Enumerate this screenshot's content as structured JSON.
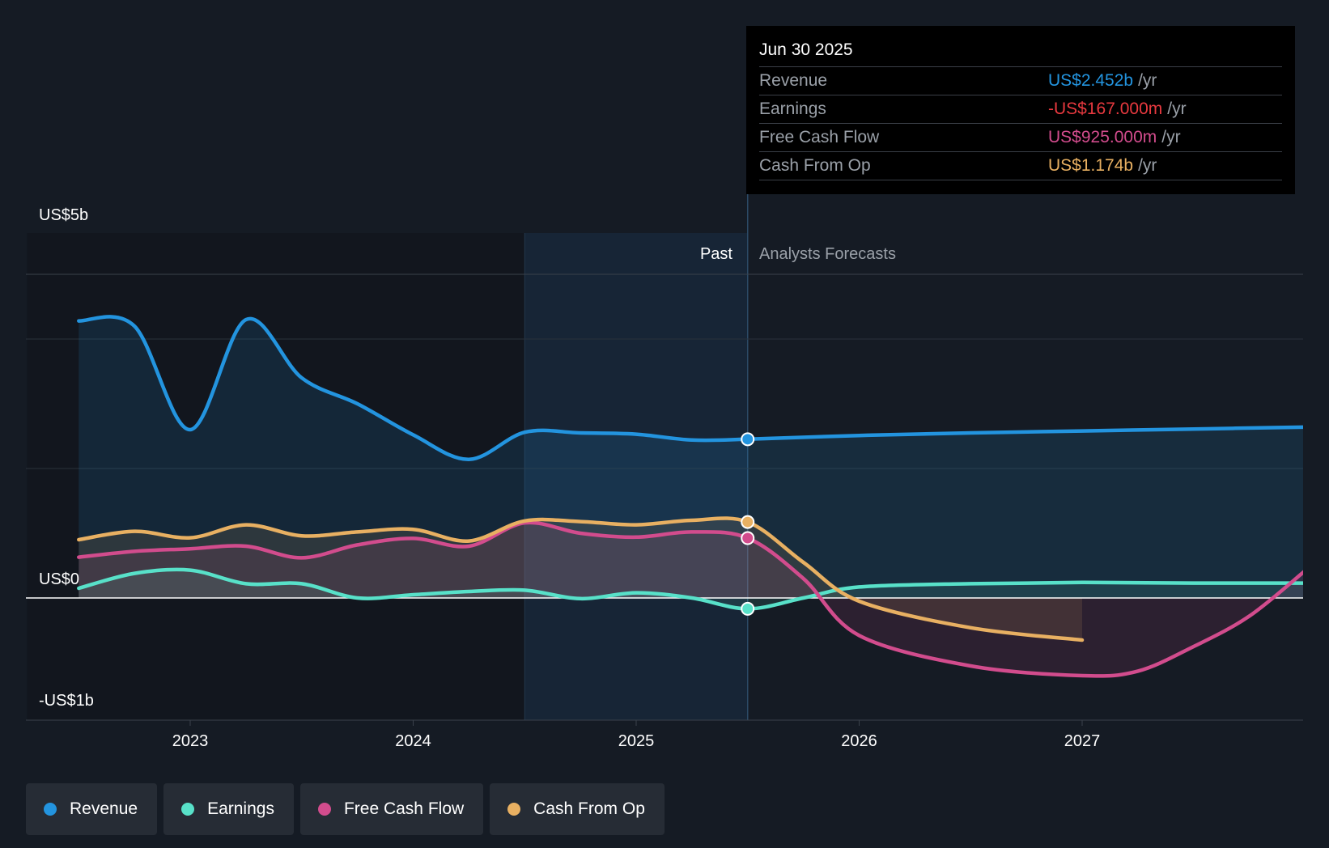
{
  "chart_data": {
    "type": "line",
    "y_axis": {
      "labels": [
        "US$5b",
        "US$0",
        "-US$1b"
      ],
      "ylim": [
        -1.5,
        5.0
      ],
      "unit": "US$b"
    },
    "x_axis": {
      "ticks": [
        2023,
        2024,
        2025,
        2026,
        2027
      ],
      "tick_labels": [
        "2023",
        "2024",
        "2025",
        "2026",
        "2027"
      ],
      "xlim": [
        2022.27,
        2028.0
      ]
    },
    "regions": {
      "past_label": "Past",
      "forecast_label": "Analysts Forecasts",
      "divider_x": 2025.5,
      "shade_start_x": 2024.5
    },
    "series": [
      {
        "name": "Revenue",
        "color": "#2394df",
        "fill": true,
        "points": [
          [
            2022.5,
            4.28
          ],
          [
            2022.75,
            4.2
          ],
          [
            2023.0,
            2.6
          ],
          [
            2023.25,
            4.3
          ],
          [
            2023.5,
            3.4
          ],
          [
            2023.75,
            3.0
          ],
          [
            2024.0,
            2.52
          ],
          [
            2024.25,
            2.14
          ],
          [
            2024.5,
            2.56
          ],
          [
            2024.75,
            2.55
          ],
          [
            2025.0,
            2.53
          ],
          [
            2025.25,
            2.44
          ],
          [
            2025.5,
            2.452
          ],
          [
            2026.0,
            2.51
          ],
          [
            2026.5,
            2.55
          ],
          [
            2027.0,
            2.58
          ],
          [
            2027.5,
            2.61
          ],
          [
            2028.0,
            2.64
          ]
        ],
        "marker": [
          2025.5,
          2.452
        ]
      },
      {
        "name": "Earnings",
        "color": "#58e1c9",
        "fill": true,
        "points": [
          [
            2022.5,
            0.15
          ],
          [
            2022.75,
            0.38
          ],
          [
            2023.0,
            0.43
          ],
          [
            2023.25,
            0.22
          ],
          [
            2023.5,
            0.22
          ],
          [
            2023.75,
            0.0
          ],
          [
            2024.0,
            0.05
          ],
          [
            2024.25,
            0.1
          ],
          [
            2024.5,
            0.12
          ],
          [
            2024.75,
            -0.01
          ],
          [
            2025.0,
            0.08
          ],
          [
            2025.25,
            0.0
          ],
          [
            2025.5,
            -0.167
          ],
          [
            2025.75,
            0.0
          ],
          [
            2026.0,
            0.17
          ],
          [
            2026.5,
            0.22
          ],
          [
            2027.0,
            0.24
          ],
          [
            2027.5,
            0.23
          ],
          [
            2028.0,
            0.23
          ]
        ],
        "marker": [
          2025.5,
          -0.167
        ]
      },
      {
        "name": "Free Cash Flow",
        "color": "#d24c8d",
        "fill": true,
        "points": [
          [
            2022.5,
            0.63
          ],
          [
            2022.75,
            0.72
          ],
          [
            2023.0,
            0.76
          ],
          [
            2023.25,
            0.8
          ],
          [
            2023.5,
            0.62
          ],
          [
            2023.75,
            0.82
          ],
          [
            2024.0,
            0.92
          ],
          [
            2024.25,
            0.8
          ],
          [
            2024.5,
            1.16
          ],
          [
            2024.75,
            1.0
          ],
          [
            2025.0,
            0.94
          ],
          [
            2025.25,
            1.02
          ],
          [
            2025.5,
            0.925
          ],
          [
            2025.75,
            0.3
          ],
          [
            2026.0,
            -0.58
          ],
          [
            2026.5,
            -1.05
          ],
          [
            2027.0,
            -1.2
          ],
          [
            2027.25,
            -1.13
          ],
          [
            2027.5,
            -0.75
          ],
          [
            2027.75,
            -0.28
          ],
          [
            2028.0,
            0.42
          ]
        ],
        "marker": [
          2025.5,
          0.925
        ]
      },
      {
        "name": "Cash From Op",
        "color": "#e8b062",
        "fill": true,
        "points": [
          [
            2022.5,
            0.9
          ],
          [
            2022.75,
            1.03
          ],
          [
            2023.0,
            0.93
          ],
          [
            2023.25,
            1.13
          ],
          [
            2023.5,
            0.96
          ],
          [
            2023.75,
            1.02
          ],
          [
            2024.0,
            1.06
          ],
          [
            2024.25,
            0.88
          ],
          [
            2024.5,
            1.19
          ],
          [
            2024.75,
            1.18
          ],
          [
            2025.0,
            1.13
          ],
          [
            2025.25,
            1.2
          ],
          [
            2025.5,
            1.174
          ],
          [
            2025.75,
            0.55
          ],
          [
            2026.0,
            -0.05
          ],
          [
            2026.5,
            -0.46
          ],
          [
            2027.0,
            -0.65
          ]
        ],
        "marker": [
          2025.5,
          1.174
        ]
      }
    ],
    "tooltip": {
      "date": "Jun 30 2025",
      "rows": [
        {
          "label": "Revenue",
          "value": "US$2.452b",
          "unit": "/yr",
          "color": "#2394df"
        },
        {
          "label": "Earnings",
          "value": "-US$167.000m",
          "unit": "/yr",
          "color": "#e8393f"
        },
        {
          "label": "Free Cash Flow",
          "value": "US$925.000m",
          "unit": "/yr",
          "color": "#d24c8d"
        },
        {
          "label": "Cash From Op",
          "value": "US$1.174b",
          "unit": "/yr",
          "color": "#e8b062"
        }
      ]
    },
    "legend": [
      {
        "label": "Revenue",
        "color": "#2394df"
      },
      {
        "label": "Earnings",
        "color": "#58e1c9"
      },
      {
        "label": "Free Cash Flow",
        "color": "#d24c8d"
      },
      {
        "label": "Cash From Op",
        "color": "#e8b062"
      }
    ]
  }
}
